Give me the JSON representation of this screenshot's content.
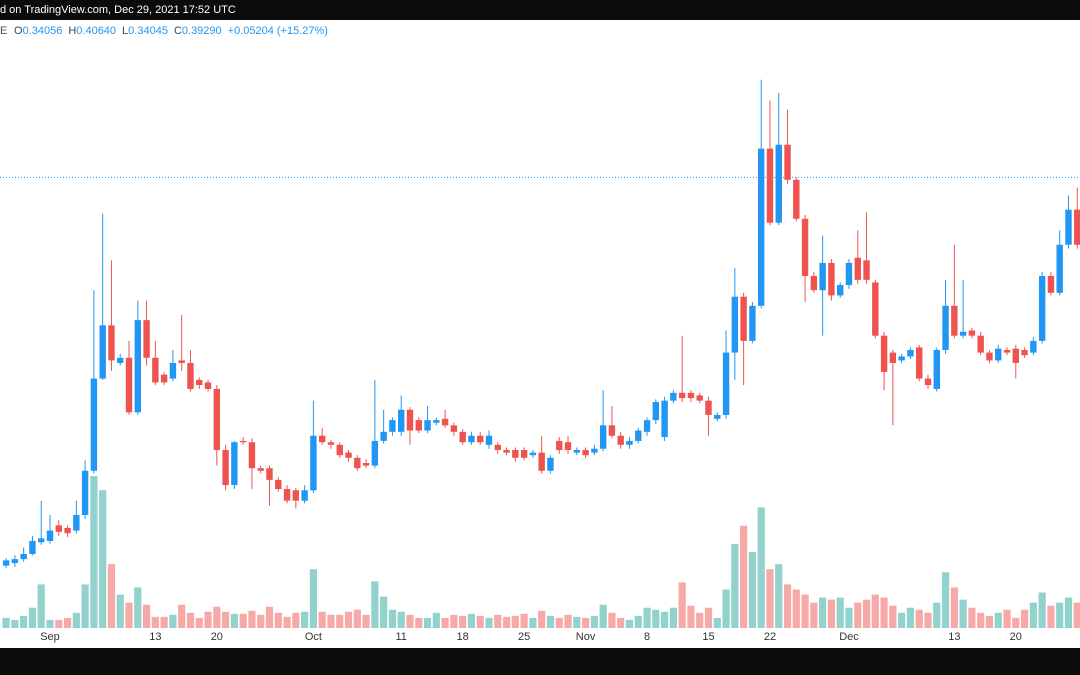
{
  "chart_data": {
    "type": "candlestick",
    "header": "d on TradingView.com, Dec 29, 2021 17:52 UTC",
    "symbol": "E",
    "ohlc": [
      {
        "label": "O",
        "value": "0.34056"
      },
      {
        "label": "H",
        "value": "0.40640"
      },
      {
        "label": "L",
        "value": "0.34045"
      },
      {
        "label": "C",
        "value": "0.39290"
      }
    ],
    "change": "+0.05204 (+15.27%)",
    "price_line": 0.3929,
    "up_color": "#2196f3",
    "down_color": "#ef5350",
    "volume_up_color": "rgba(38,166,154,0.5)",
    "volume_down_color": "rgba(239,83,80,0.5)",
    "ylim": [
      0.046,
      0.514
    ],
    "vlim": [
      0,
      600
    ],
    "categories": [
      null,
      null,
      null,
      null,
      null,
      "Sep",
      null,
      null,
      null,
      null,
      null,
      null,
      null,
      null,
      null,
      null,
      null,
      "13",
      null,
      null,
      null,
      null,
      null,
      null,
      "20",
      null,
      null,
      null,
      null,
      null,
      null,
      null,
      null,
      null,
      null,
      "Oct",
      null,
      null,
      null,
      null,
      null,
      null,
      null,
      null,
      null,
      "11",
      null,
      null,
      null,
      null,
      null,
      null,
      "18",
      null,
      null,
      null,
      null,
      null,
      null,
      "25",
      null,
      null,
      null,
      null,
      null,
      null,
      "Nov",
      null,
      null,
      null,
      null,
      null,
      null,
      "8",
      null,
      null,
      null,
      null,
      null,
      null,
      "15",
      null,
      null,
      null,
      null,
      null,
      null,
      "22",
      null,
      null,
      null,
      null,
      null,
      null,
      null,
      null,
      "Dec",
      null,
      null,
      null,
      null,
      null,
      null,
      null,
      null,
      null,
      null,
      null,
      "13",
      null,
      null,
      null,
      null,
      null,
      null,
      "20",
      null,
      null,
      null,
      null,
      null,
      null,
      null
    ],
    "open": [
      0.094,
      0.096,
      0.099,
      0.103,
      0.112,
      0.113,
      0.125,
      0.123,
      0.121,
      0.133,
      0.167,
      0.238,
      0.279,
      0.25,
      0.254,
      0.212,
      0.283,
      0.254,
      0.241,
      0.238,
      0.252,
      0.25,
      0.237,
      0.235,
      0.23,
      0.183,
      0.156,
      0.19,
      0.189,
      0.169,
      0.169,
      0.16,
      0.153,
      0.152,
      0.144,
      0.152,
      0.194,
      0.189,
      0.187,
      0.181,
      0.177,
      0.173,
      0.171,
      0.19,
      0.197,
      0.197,
      0.214,
      0.206,
      0.198,
      0.204,
      0.207,
      0.202,
      0.197,
      0.189,
      0.194,
      0.187,
      0.187,
      0.183,
      0.183,
      0.183,
      0.179,
      0.181,
      0.167,
      0.19,
      0.189,
      0.181,
      0.183,
      0.181,
      0.184,
      0.202,
      0.194,
      0.187,
      0.19,
      0.197,
      0.206,
      0.193,
      0.221,
      0.227,
      0.227,
      0.225,
      0.221,
      0.207,
      0.21,
      0.258,
      0.301,
      0.267,
      0.294,
      0.415,
      0.358,
      0.418,
      0.391,
      0.361,
      0.317,
      0.306,
      0.327,
      0.302,
      0.31,
      0.331,
      0.329,
      0.312,
      0.271,
      0.258,
      0.252,
      0.255,
      0.262,
      0.238,
      0.23,
      0.26,
      0.294,
      0.271,
      0.275,
      0.271,
      0.258,
      0.252,
      0.26,
      0.261,
      0.26,
      0.258,
      0.267,
      0.317,
      0.304,
      0.341,
      0.368
    ],
    "high": [
      0.1,
      0.102,
      0.108,
      0.117,
      0.144,
      0.133,
      0.129,
      0.125,
      0.144,
      0.175,
      0.306,
      0.365,
      0.329,
      0.257,
      0.267,
      0.298,
      0.298,
      0.267,
      0.243,
      0.26,
      0.287,
      0.26,
      0.239,
      0.237,
      0.233,
      0.187,
      0.19,
      0.193,
      0.192,
      0.171,
      0.171,
      0.162,
      0.156,
      0.154,
      0.156,
      0.221,
      0.2,
      0.191,
      0.189,
      0.183,
      0.179,
      0.176,
      0.237,
      0.214,
      0.208,
      0.225,
      0.216,
      0.208,
      0.217,
      0.208,
      0.214,
      0.204,
      0.199,
      0.197,
      0.197,
      0.198,
      0.189,
      0.185,
      0.185,
      0.185,
      0.183,
      0.194,
      0.179,
      0.193,
      0.194,
      0.185,
      0.185,
      0.187,
      0.229,
      0.217,
      0.197,
      0.193,
      0.2,
      0.208,
      0.222,
      0.224,
      0.229,
      0.271,
      0.229,
      0.227,
      0.224,
      0.212,
      0.275,
      0.323,
      0.304,
      0.297,
      0.468,
      0.452,
      0.458,
      0.445,
      0.393,
      0.364,
      0.32,
      0.348,
      0.33,
      0.312,
      0.33,
      0.352,
      0.366,
      0.314,
      0.274,
      0.26,
      0.257,
      0.262,
      0.264,
      0.241,
      0.262,
      0.314,
      0.341,
      0.314,
      0.277,
      0.274,
      0.26,
      0.264,
      0.262,
      0.264,
      0.262,
      0.27,
      0.32,
      0.32,
      0.352,
      0.379,
      0.385
    ],
    "low": [
      0.092,
      0.093,
      0.097,
      0.102,
      0.11,
      0.111,
      0.117,
      0.116,
      0.119,
      0.13,
      0.165,
      0.237,
      0.244,
      0.248,
      0.21,
      0.21,
      0.248,
      0.233,
      0.233,
      0.236,
      0.244,
      0.228,
      0.23,
      0.228,
      0.171,
      0.152,
      0.153,
      0.187,
      0.153,
      0.165,
      0.14,
      0.151,
      0.142,
      0.138,
      0.142,
      0.15,
      0.187,
      0.184,
      0.177,
      0.174,
      0.167,
      0.169,
      0.169,
      0.188,
      0.194,
      0.194,
      0.187,
      0.196,
      0.196,
      0.202,
      0.2,
      0.194,
      0.187,
      0.187,
      0.187,
      0.184,
      0.18,
      0.179,
      0.174,
      0.175,
      0.177,
      0.165,
      0.165,
      0.18,
      0.18,
      0.179,
      0.177,
      0.179,
      0.182,
      0.192,
      0.184,
      0.184,
      0.188,
      0.194,
      0.203,
      0.19,
      0.219,
      0.22,
      0.22,
      0.219,
      0.194,
      0.205,
      0.207,
      0.237,
      0.233,
      0.265,
      0.292,
      0.356,
      0.356,
      0.388,
      0.359,
      0.297,
      0.304,
      0.271,
      0.298,
      0.3,
      0.307,
      0.311,
      0.311,
      0.269,
      0.229,
      0.202,
      0.25,
      0.253,
      0.236,
      0.23,
      0.228,
      0.257,
      0.269,
      0.269,
      0.269,
      0.256,
      0.25,
      0.25,
      0.256,
      0.238,
      0.254,
      0.256,
      0.265,
      0.302,
      0.302,
      0.338,
      0.338
    ],
    "close": [
      0.098,
      0.099,
      0.103,
      0.113,
      0.115,
      0.121,
      0.12,
      0.119,
      0.133,
      0.167,
      0.238,
      0.279,
      0.252,
      0.254,
      0.212,
      0.283,
      0.254,
      0.235,
      0.235,
      0.25,
      0.25,
      0.23,
      0.233,
      0.23,
      0.183,
      0.156,
      0.189,
      0.189,
      0.169,
      0.167,
      0.16,
      0.153,
      0.144,
      0.144,
      0.152,
      0.194,
      0.189,
      0.187,
      0.179,
      0.177,
      0.169,
      0.171,
      0.19,
      0.197,
      0.206,
      0.214,
      0.198,
      0.198,
      0.206,
      0.206,
      0.202,
      0.197,
      0.189,
      0.194,
      0.189,
      0.194,
      0.183,
      0.181,
      0.177,
      0.177,
      0.181,
      0.167,
      0.177,
      0.183,
      0.183,
      0.183,
      0.179,
      0.184,
      0.202,
      0.194,
      0.187,
      0.19,
      0.198,
      0.206,
      0.22,
      0.221,
      0.227,
      0.223,
      0.223,
      0.221,
      0.21,
      0.21,
      0.258,
      0.301,
      0.267,
      0.294,
      0.415,
      0.358,
      0.418,
      0.391,
      0.361,
      0.317,
      0.306,
      0.327,
      0.302,
      0.31,
      0.327,
      0.314,
      0.314,
      0.271,
      0.243,
      0.25,
      0.255,
      0.26,
      0.238,
      0.233,
      0.26,
      0.294,
      0.271,
      0.274,
      0.271,
      0.258,
      0.252,
      0.261,
      0.258,
      0.25,
      0.256,
      0.267,
      0.317,
      0.304,
      0.341,
      0.368,
      0.341
    ],
    "volume": [
      10,
      8,
      12,
      20,
      43,
      8,
      8,
      10,
      15,
      43,
      150,
      136,
      63,
      33,
      25,
      40,
      23,
      11,
      11,
      13,
      23,
      15,
      10,
      16,
      21,
      16,
      14,
      14,
      17,
      13,
      21,
      15,
      11,
      15,
      16,
      58,
      16,
      13,
      13,
      16,
      18,
      13,
      46,
      31,
      18,
      16,
      13,
      10,
      10,
      15,
      10,
      13,
      12,
      14,
      12,
      10,
      13,
      11,
      12,
      14,
      10,
      17,
      12,
      10,
      13,
      11,
      10,
      12,
      23,
      15,
      10,
      8,
      12,
      20,
      18,
      16,
      20,
      45,
      22,
      15,
      20,
      10,
      38,
      83,
      101,
      75,
      119,
      58,
      63,
      43,
      38,
      33,
      25,
      30,
      28,
      30,
      20,
      25,
      28,
      33,
      30,
      22,
      15,
      20,
      18,
      15,
      25,
      55,
      40,
      28,
      20,
      15,
      12,
      15,
      18,
      10,
      18,
      25,
      35,
      22,
      25,
      30,
      25
    ]
  }
}
